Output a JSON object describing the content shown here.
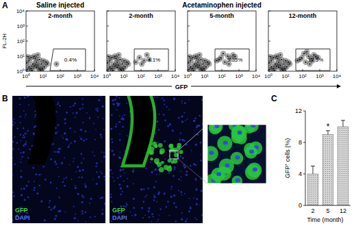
{
  "figure": {
    "panel_labels": [
      "A",
      "B",
      "C"
    ],
    "groups": [
      {
        "label": "Saline injected",
        "charts": [
          0
        ]
      },
      {
        "label": "Acetaminophen injected",
        "charts": [
          1,
          2,
          3
        ]
      }
    ],
    "images": [
      {
        "legend": [
          {
            "label": "GFP",
            "color": "#33dd33"
          },
          {
            "label": "DAPI",
            "color": "#5577ff"
          }
        ]
      },
      {
        "legend": [
          {
            "label": "GFP",
            "color": "#33dd33"
          },
          {
            "label": "DAPI",
            "color": "#5577ff"
          }
        ]
      }
    ]
  },
  "chart_data": [
    {
      "type": "scatter",
      "title": "2-month",
      "y_label": "FL-2H",
      "x_label": "GFP",
      "log": true,
      "color": "#000000",
      "xlim": [
        1,
        10000
      ],
      "ylim": [
        1,
        10000
      ],
      "xticks": [
        {
          "value": 1,
          "label": "10⁰"
        },
        {
          "value": 10,
          "label": "10¹"
        },
        {
          "value": 100,
          "label": "10²"
        },
        {
          "value": 1000,
          "label": "10³"
        },
        {
          "value": 10000,
          "label": "10⁴"
        }
      ],
      "yticks": [
        {
          "value": 1,
          "label": "10⁰"
        },
        {
          "value": 10,
          "label": "10¹"
        },
        {
          "value": 100,
          "label": "10²"
        },
        {
          "value": 1000,
          "label": "10³"
        },
        {
          "value": 10000,
          "label": "10⁴"
        }
      ],
      "x": [
        1.2,
        1.5,
        2,
        2.5,
        3,
        4,
        5,
        6,
        8,
        10,
        12,
        15,
        18,
        2,
        3,
        5,
        7,
        1.5,
        4,
        9,
        1.1,
        2.2,
        3.5,
        6,
        1.3,
        60
      ],
      "y": [
        1.3,
        2,
        1.5,
        3,
        2.2,
        4,
        2.5,
        6,
        3,
        5,
        2,
        4,
        3,
        8,
        10,
        12,
        1.2,
        5,
        1.8,
        1.5,
        3.5,
        1.1,
        7,
        1.4,
        9,
        3
      ],
      "gate": {
        "x": [
          25,
          3000,
          3000,
          40
        ],
        "y": [
          1.1,
          1.1,
          30,
          30
        ],
        "label": "0.4%"
      }
    },
    {
      "type": "scatter",
      "title": "2-month",
      "log": true,
      "color": "#000000",
      "tick_labels": "x",
      "xlim": [
        1,
        10000
      ],
      "ylim": [
        1,
        10000
      ],
      "xticks": [
        {
          "value": 1,
          "label": "10⁰"
        },
        {
          "value": 10,
          "label": "10¹"
        },
        {
          "value": 100,
          "label": "10²"
        },
        {
          "value": 1000,
          "label": "10³"
        },
        {
          "value": 10000,
          "label": "10⁴"
        }
      ],
      "yticks": [
        {
          "value": 1,
          "label": "10⁰"
        },
        {
          "value": 10,
          "label": "10¹"
        },
        {
          "value": 100,
          "label": "10²"
        },
        {
          "value": 1000,
          "label": "10³"
        },
        {
          "value": 10000,
          "label": "10⁴"
        }
      ],
      "x": [
        1.2,
        1.5,
        2,
        2.5,
        3,
        4,
        5,
        6,
        8,
        10,
        12,
        15,
        18,
        2,
        3,
        5,
        7,
        1.5,
        4,
        9,
        1.1,
        2.2,
        3.5,
        6,
        1.3,
        50,
        80,
        150,
        220,
        110,
        300
      ],
      "y": [
        1.3,
        2,
        1.5,
        3,
        2.2,
        4,
        2.5,
        6,
        3,
        5,
        2,
        4,
        3,
        8,
        10,
        12,
        1.2,
        5,
        1.8,
        1.5,
        3.5,
        1.1,
        7,
        1.4,
        9,
        4,
        8,
        5,
        12,
        3,
        6
      ],
      "gate": {
        "x": [
          40,
          4000,
          4000,
          40
        ],
        "y": [
          1.1,
          1.1,
          30,
          30
        ],
        "label": "4.1%"
      }
    },
    {
      "type": "scatter",
      "title": "5-month",
      "log": true,
      "color": "#000000",
      "tick_labels": "x",
      "xlim": [
        1,
        10000
      ],
      "ylim": [
        1,
        10000
      ],
      "xticks": [
        {
          "value": 1,
          "label": "10⁰"
        },
        {
          "value": 10,
          "label": "10¹"
        },
        {
          "value": 100,
          "label": "10²"
        },
        {
          "value": 1000,
          "label": "10³"
        },
        {
          "value": 10000,
          "label": "10⁴"
        }
      ],
      "yticks": [
        {
          "value": 1,
          "label": "10⁰"
        },
        {
          "value": 10,
          "label": "10¹"
        },
        {
          "value": 100,
          "label": "10²"
        },
        {
          "value": 1000,
          "label": "10³"
        },
        {
          "value": 10000,
          "label": "10⁴"
        }
      ],
      "x": [
        1.2,
        1.5,
        2,
        2.5,
        3,
        4,
        5,
        6,
        8,
        10,
        12,
        15,
        18,
        2,
        3,
        5,
        7,
        1.5,
        4,
        9,
        1.1,
        2.2,
        3.5,
        6,
        1.3,
        50,
        90,
        150,
        220,
        320,
        450,
        260,
        120,
        70,
        600
      ],
      "y": [
        1.3,
        2,
        1.5,
        3,
        2.2,
        4,
        2.5,
        6,
        3,
        5,
        2,
        4,
        3,
        8,
        10,
        12,
        1.2,
        5,
        1.8,
        1.5,
        3.5,
        1.1,
        7,
        1.4,
        9,
        5,
        8,
        4,
        10,
        7,
        12,
        3,
        15,
        6,
        9
      ],
      "gate": {
        "x": [
          40,
          4000,
          4000,
          40
        ],
        "y": [
          1.1,
          1.1,
          30,
          30
        ],
        "label": "9.35%"
      }
    },
    {
      "type": "scatter",
      "title": "12-month",
      "log": true,
      "color": "#000000",
      "tick_labels": "x",
      "xlim": [
        1,
        10000
      ],
      "ylim": [
        1,
        10000
      ],
      "xticks": [
        {
          "value": 1,
          "label": "10⁰"
        },
        {
          "value": 10,
          "label": "10¹"
        },
        {
          "value": 100,
          "label": "10²"
        },
        {
          "value": 1000,
          "label": "10³"
        },
        {
          "value": 10000,
          "label": "10⁴"
        }
      ],
      "yticks": [
        {
          "value": 1,
          "label": "10⁰"
        },
        {
          "value": 10,
          "label": "10¹"
        },
        {
          "value": 100,
          "label": "10²"
        },
        {
          "value": 1000,
          "label": "10³"
        },
        {
          "value": 10000,
          "label": "10⁴"
        }
      ],
      "x": [
        1.2,
        1.5,
        2,
        2.5,
        3,
        4,
        5,
        6,
        8,
        10,
        12,
        15,
        18,
        2,
        3,
        5,
        7,
        1.5,
        4,
        9,
        1.1,
        2.2,
        3.5,
        6,
        1.3,
        50,
        90,
        150,
        220,
        320,
        450,
        260,
        120,
        70,
        600,
        180,
        380,
        800
      ],
      "y": [
        1.3,
        2,
        1.5,
        3,
        2.2,
        4,
        2.5,
        6,
        3,
        5,
        2,
        4,
        3,
        8,
        10,
        12,
        1.2,
        5,
        1.8,
        1.5,
        3.5,
        1.1,
        7,
        1.4,
        9,
        5,
        8,
        4,
        10,
        7,
        12,
        3,
        15,
        6,
        9,
        20,
        5,
        8
      ],
      "gate": {
        "x": [
          40,
          4000,
          4000,
          40
        ],
        "y": [
          1.1,
          1.1,
          30,
          30
        ],
        "label": "12.5%"
      }
    },
    {
      "type": "bar",
      "categories": [
        "2",
        "5",
        "12"
      ],
      "values": [
        4,
        9,
        10
      ],
      "errors": [
        1,
        0.5,
        0.8
      ],
      "color": "#d4d4d4",
      "x_label": "Time (month)",
      "y_label": "GFP⁺ cells (%)",
      "ylim": [
        0,
        12
      ],
      "yticks": [
        0,
        4,
        8,
        12
      ],
      "grid": false,
      "annotations": [
        {
          "label": "*",
          "category": "5"
        }
      ]
    }
  ]
}
